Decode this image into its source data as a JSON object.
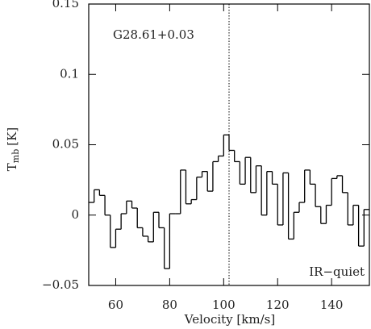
{
  "chart_data": {
    "type": "step",
    "xlabel": "Velocity [km/s]",
    "ylabel_main": "T",
    "ylabel_sub": "mb",
    "ylabel_unit": "[K]",
    "annotations": [
      "G28.61+0.03",
      "IR−quiet"
    ],
    "vline": 102,
    "x": [
      51,
      53,
      55,
      57,
      59,
      61,
      63,
      65,
      67,
      69,
      71,
      73,
      75,
      77,
      79,
      81,
      83,
      85,
      87,
      89,
      91,
      93,
      95,
      97,
      99,
      101,
      103,
      105,
      107,
      109,
      111,
      113,
      115,
      117,
      119,
      121,
      123,
      125,
      127,
      129,
      131,
      133,
      135,
      137,
      139,
      141,
      143,
      145,
      147,
      149,
      151,
      153
    ],
    "values": [
      0.009,
      0.018,
      0.014,
      0,
      -0.023,
      -0.01,
      0.001,
      0.01,
      0.005,
      -0.009,
      -0.015,
      -0.019,
      0.002,
      -0.009,
      -0.038,
      0.001,
      0.001,
      0.032,
      0.008,
      0.011,
      0.027,
      0.031,
      0.017,
      0.038,
      0.042,
      0.057,
      0.046,
      0.038,
      0.022,
      0.041,
      0.016,
      0.035,
      0,
      0.031,
      0.022,
      -0.007,
      0.03,
      -0.017,
      0.002,
      0.009,
      0.032,
      0.022,
      0.006,
      -0.006,
      0.007,
      0.026,
      0.028,
      0.016,
      -0.007,
      0.007,
      -0.022,
      0.004
    ],
    "color": "#000000",
    "xlim": [
      50,
      154
    ],
    "ylim": [
      -0.05,
      0.15
    ],
    "xticks": [
      60,
      80,
      100,
      120,
      140
    ],
    "yticks": [
      {
        "value": -0.05,
        "label": "−0.05"
      },
      0,
      0.05,
      0.1,
      0.15
    ]
  }
}
